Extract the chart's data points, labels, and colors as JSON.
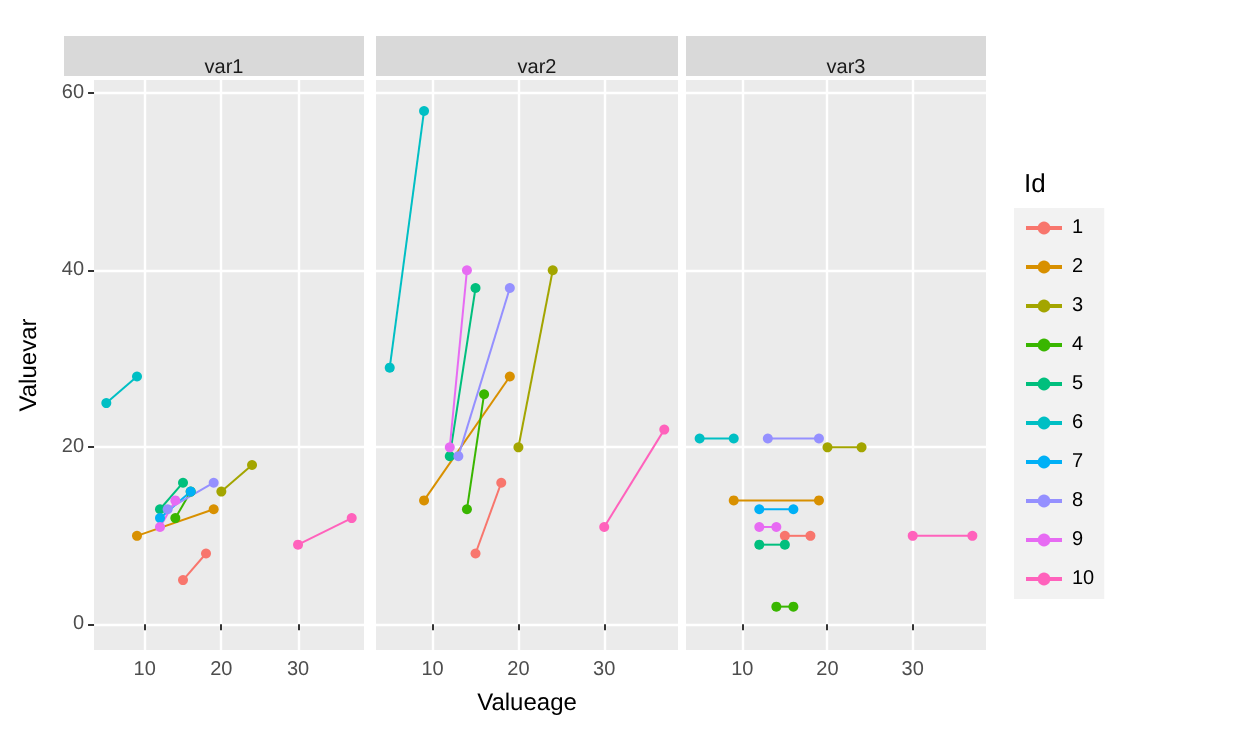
{
  "chart_data": [
    {
      "type": "line",
      "title": "var1",
      "ylabel": "Valuevar",
      "xlim": [
        3.4,
        38.6
      ],
      "xticks": [
        10,
        20,
        30
      ],
      "ylim": [
        -2.9,
        61.5
      ],
      "yticks": [
        0,
        20,
        40,
        60
      ],
      "grid": true,
      "marker": "circle",
      "legend": false,
      "series": [
        {
          "color": "#F8766D",
          "x": [
            15,
            18
          ],
          "values": [
            5,
            8
          ]
        },
        {
          "color": "#D89000",
          "x": [
            9,
            19
          ],
          "values": [
            10,
            13
          ]
        },
        {
          "color": "#A3A500",
          "x": [
            20,
            24
          ],
          "values": [
            15,
            18
          ]
        },
        {
          "color": "#39B600",
          "x": [
            14,
            16
          ],
          "values": [
            12,
            15
          ]
        },
        {
          "color": "#00BF7D",
          "x": [
            12,
            15
          ],
          "values": [
            13,
            16
          ]
        },
        {
          "color": "#00BFC4",
          "x": [
            5,
            9
          ],
          "values": [
            25,
            28
          ]
        },
        {
          "color": "#00B0F6",
          "x": [
            12,
            16
          ],
          "values": [
            12,
            15
          ]
        },
        {
          "color": "#9590FF",
          "x": [
            13,
            19
          ],
          "values": [
            13,
            16
          ]
        },
        {
          "color": "#E76BF3",
          "x": [
            12,
            14
          ],
          "values": [
            11,
            14
          ]
        },
        {
          "color": "#FF62BC",
          "x": [
            30,
            37
          ],
          "values": [
            9,
            12
          ]
        }
      ]
    },
    {
      "type": "line",
      "title": "var2",
      "xlabel": "Valueage",
      "xlim": [
        3.4,
        38.6
      ],
      "xticks": [
        10,
        20,
        30
      ],
      "ylim": [
        -2.9,
        61.5
      ],
      "yticks": [
        0,
        20,
        40,
        60
      ],
      "grid": true,
      "marker": "circle",
      "legend": false,
      "tick_labels": "x",
      "series": [
        {
          "color": "#F8766D",
          "x": [
            15,
            18
          ],
          "values": [
            8,
            16
          ]
        },
        {
          "color": "#D89000",
          "x": [
            9,
            19
          ],
          "values": [
            14,
            28
          ]
        },
        {
          "color": "#A3A500",
          "x": [
            20,
            24
          ],
          "values": [
            20,
            40
          ]
        },
        {
          "color": "#39B600",
          "x": [
            14,
            16
          ],
          "values": [
            13,
            26
          ]
        },
        {
          "color": "#00BF7D",
          "x": [
            12,
            15
          ],
          "values": [
            19,
            38
          ]
        },
        {
          "color": "#00BFC4",
          "x": [
            5,
            9
          ],
          "values": [
            29,
            58
          ]
        },
        {
          "color": "#9590FF",
          "x": [
            13,
            19
          ],
          "values": [
            19,
            38
          ]
        },
        {
          "color": "#E76BF3",
          "x": [
            12,
            14
          ],
          "values": [
            20,
            40
          ]
        },
        {
          "color": "#FF62BC",
          "x": [
            30,
            37
          ],
          "values": [
            11,
            22
          ]
        }
      ]
    },
    {
      "type": "line",
      "title": "var3",
      "legend_title": "Id",
      "xlim": [
        3.4,
        38.6
      ],
      "xticks": [
        10,
        20,
        30
      ],
      "ylim": [
        -2.9,
        61.5
      ],
      "yticks": [
        0,
        20,
        40,
        60
      ],
      "grid": true,
      "marker": "circle",
      "legend": "right",
      "tick_labels": "x",
      "series": [
        {
          "name": "1",
          "color": "#F8766D",
          "x": [
            15,
            18
          ],
          "values": [
            10,
            10
          ]
        },
        {
          "name": "2",
          "color": "#D89000",
          "x": [
            9,
            19
          ],
          "values": [
            14,
            14
          ]
        },
        {
          "name": "3",
          "color": "#A3A500",
          "x": [
            20,
            24
          ],
          "values": [
            20,
            20
          ]
        },
        {
          "name": "4",
          "color": "#39B600",
          "x": [
            14,
            16
          ],
          "values": [
            2,
            2
          ]
        },
        {
          "name": "5",
          "color": "#00BF7D",
          "x": [
            12,
            15
          ],
          "values": [
            9,
            9
          ]
        },
        {
          "name": "6",
          "color": "#00BFC4",
          "x": [
            5,
            9
          ],
          "values": [
            21,
            21
          ]
        },
        {
          "name": "7",
          "color": "#00B0F6",
          "x": [
            12,
            16
          ],
          "values": [
            13,
            13
          ]
        },
        {
          "name": "8",
          "color": "#9590FF",
          "x": [
            13,
            19
          ],
          "values": [
            21,
            21
          ]
        },
        {
          "name": "9",
          "color": "#E76BF3",
          "x": [
            12,
            14
          ],
          "values": [
            11,
            11
          ]
        },
        {
          "name": "10",
          "color": "#FF62BC",
          "x": [
            30,
            37
          ],
          "values": [
            10,
            10
          ]
        }
      ]
    }
  ]
}
